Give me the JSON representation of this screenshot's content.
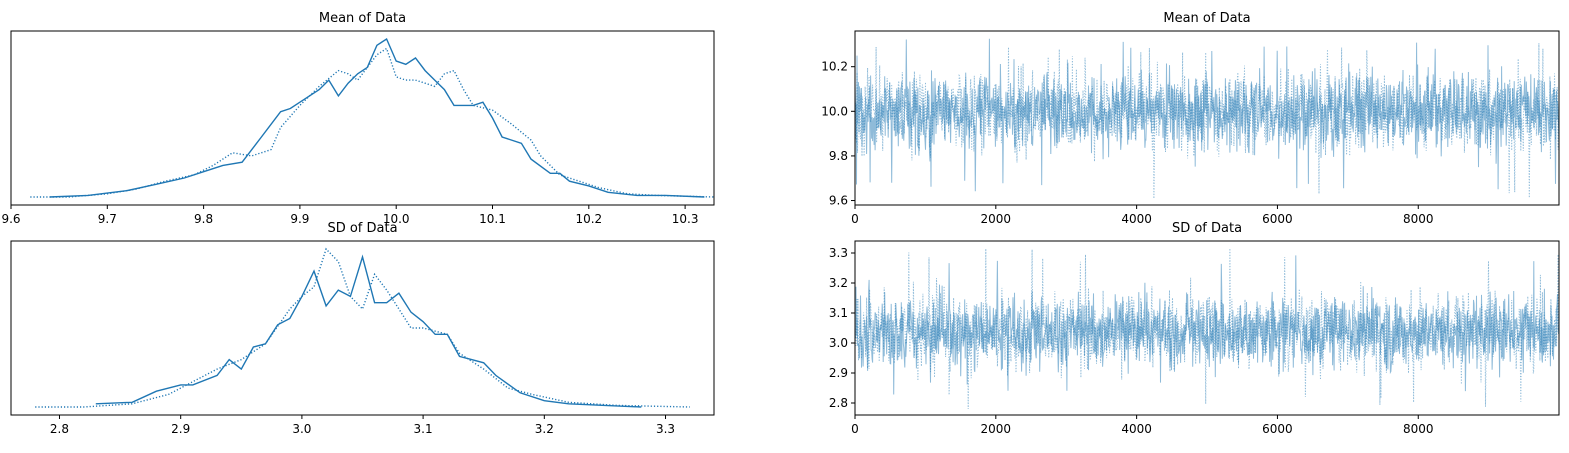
{
  "chart_data": [
    {
      "type": "line",
      "subtype": "density",
      "title": "Mean of Data",
      "xlim": [
        9.6,
        10.33
      ],
      "x_ticks": [
        "9.6",
        "9.7",
        "9.8",
        "9.9",
        "10.0",
        "10.1",
        "10.2",
        "10.3"
      ],
      "y_ticks": [],
      "series": [
        {
          "style": "solid",
          "color": "#1f77b4",
          "x": [
            9.64,
            9.68,
            9.72,
            9.75,
            9.78,
            9.8,
            9.82,
            9.84,
            9.85,
            9.86,
            9.88,
            9.89,
            9.9,
            9.92,
            9.93,
            9.94,
            9.95,
            9.96,
            9.97,
            9.98,
            9.99,
            10.0,
            10.01,
            10.02,
            10.03,
            10.04,
            10.05,
            10.06,
            10.08,
            10.09,
            10.1,
            10.11,
            10.13,
            10.14,
            10.16,
            10.17,
            10.18,
            10.2,
            10.22,
            10.25,
            10.28,
            10.32
          ],
          "y": [
            0.0,
            0.01,
            0.04,
            0.08,
            0.12,
            0.16,
            0.2,
            0.22,
            0.3,
            0.38,
            0.54,
            0.56,
            0.6,
            0.68,
            0.74,
            0.64,
            0.72,
            0.78,
            0.82,
            0.96,
            1.0,
            0.86,
            0.84,
            0.88,
            0.8,
            0.74,
            0.68,
            0.58,
            0.58,
            0.6,
            0.5,
            0.38,
            0.34,
            0.24,
            0.15,
            0.15,
            0.1,
            0.07,
            0.03,
            0.01,
            0.01,
            0.0
          ]
        },
        {
          "style": "dotted",
          "color": "#1f77b4",
          "x": [
            9.62,
            9.66,
            9.7,
            9.73,
            9.76,
            9.79,
            9.81,
            9.83,
            9.85,
            9.87,
            9.88,
            9.9,
            9.92,
            9.94,
            9.95,
            9.96,
            9.97,
            9.98,
            9.99,
            10.0,
            10.01,
            10.02,
            10.04,
            10.05,
            10.06,
            10.07,
            10.08,
            10.1,
            10.12,
            10.14,
            10.15,
            10.17,
            10.19,
            10.21,
            10.24,
            10.27,
            10.33
          ],
          "y": [
            0.0,
            0.0,
            0.02,
            0.05,
            0.1,
            0.14,
            0.2,
            0.28,
            0.26,
            0.3,
            0.44,
            0.58,
            0.7,
            0.8,
            0.78,
            0.74,
            0.82,
            0.9,
            0.94,
            0.76,
            0.74,
            0.74,
            0.7,
            0.78,
            0.8,
            0.68,
            0.58,
            0.55,
            0.46,
            0.36,
            0.26,
            0.14,
            0.1,
            0.06,
            0.02,
            0.01,
            0.0
          ]
        }
      ]
    },
    {
      "type": "line",
      "subtype": "trace",
      "title": "Mean of Data",
      "xlim": [
        0,
        9999
      ],
      "ylim": [
        9.58,
        10.36
      ],
      "x_ticks": [
        "0",
        "2000",
        "4000",
        "6000",
        "8000"
      ],
      "y_ticks": [
        "9.6",
        "9.8",
        "10.0",
        "10.2"
      ],
      "series": [
        {
          "style": "solid",
          "color": "#1f77b4",
          "n": 10000,
          "center": 10.0,
          "spread": 0.1,
          "range": [
            9.64,
            10.33
          ]
        },
        {
          "style": "dotted",
          "color": "#1f77b4",
          "n": 10000,
          "center": 10.0,
          "spread": 0.1,
          "range": [
            9.6,
            10.31
          ]
        }
      ]
    },
    {
      "type": "line",
      "subtype": "density",
      "title": "SD of Data",
      "xlim": [
        2.76,
        3.34
      ],
      "x_ticks": [
        "2.8",
        "2.9",
        "3.0",
        "3.1",
        "3.2",
        "3.3"
      ],
      "y_ticks": [],
      "series": [
        {
          "style": "solid",
          "color": "#1f77b4",
          "x": [
            2.83,
            2.86,
            2.88,
            2.9,
            2.91,
            2.93,
            2.94,
            2.95,
            2.96,
            2.97,
            2.98,
            2.99,
            3.0,
            3.01,
            3.02,
            3.03,
            3.04,
            3.05,
            3.06,
            3.07,
            3.08,
            3.09,
            3.1,
            3.11,
            3.12,
            3.13,
            3.14,
            3.15,
            3.16,
            3.18,
            3.2,
            3.22,
            3.25,
            3.28
          ],
          "y": [
            0.02,
            0.03,
            0.1,
            0.14,
            0.14,
            0.2,
            0.3,
            0.24,
            0.38,
            0.4,
            0.52,
            0.56,
            0.7,
            0.86,
            0.64,
            0.74,
            0.7,
            0.95,
            0.66,
            0.66,
            0.72,
            0.6,
            0.54,
            0.46,
            0.46,
            0.32,
            0.3,
            0.28,
            0.2,
            0.09,
            0.04,
            0.02,
            0.01,
            0.0
          ]
        },
        {
          "style": "dotted",
          "color": "#1f77b4",
          "x": [
            2.78,
            2.82,
            2.86,
            2.89,
            2.91,
            2.93,
            2.95,
            2.97,
            2.99,
            3.0,
            3.01,
            3.02,
            3.03,
            3.04,
            3.05,
            3.06,
            3.07,
            3.08,
            3.09,
            3.1,
            3.12,
            3.13,
            3.15,
            3.17,
            3.19,
            3.22,
            3.26,
            3.32
          ],
          "y": [
            0.0,
            0.0,
            0.02,
            0.08,
            0.16,
            0.24,
            0.3,
            0.4,
            0.62,
            0.7,
            0.76,
            1.0,
            0.92,
            0.7,
            0.62,
            0.84,
            0.74,
            0.62,
            0.5,
            0.5,
            0.46,
            0.34,
            0.24,
            0.12,
            0.08,
            0.03,
            0.01,
            0.0
          ]
        }
      ]
    },
    {
      "type": "line",
      "subtype": "trace",
      "title": "SD of Data",
      "xlim": [
        0,
        9999
      ],
      "ylim": [
        2.76,
        3.34
      ],
      "x_ticks": [
        "0",
        "2000",
        "4000",
        "6000",
        "8000"
      ],
      "y_ticks": [
        "2.8",
        "2.9",
        "3.0",
        "3.1",
        "3.2",
        "3.3"
      ],
      "series": [
        {
          "style": "solid",
          "color": "#1f77b4",
          "n": 10000,
          "center": 3.04,
          "spread": 0.07,
          "range": [
            2.82,
            3.3
          ]
        },
        {
          "style": "dotted",
          "color": "#1f77b4",
          "n": 10000,
          "center": 3.04,
          "spread": 0.07,
          "range": [
            2.78,
            3.32
          ]
        }
      ]
    }
  ]
}
